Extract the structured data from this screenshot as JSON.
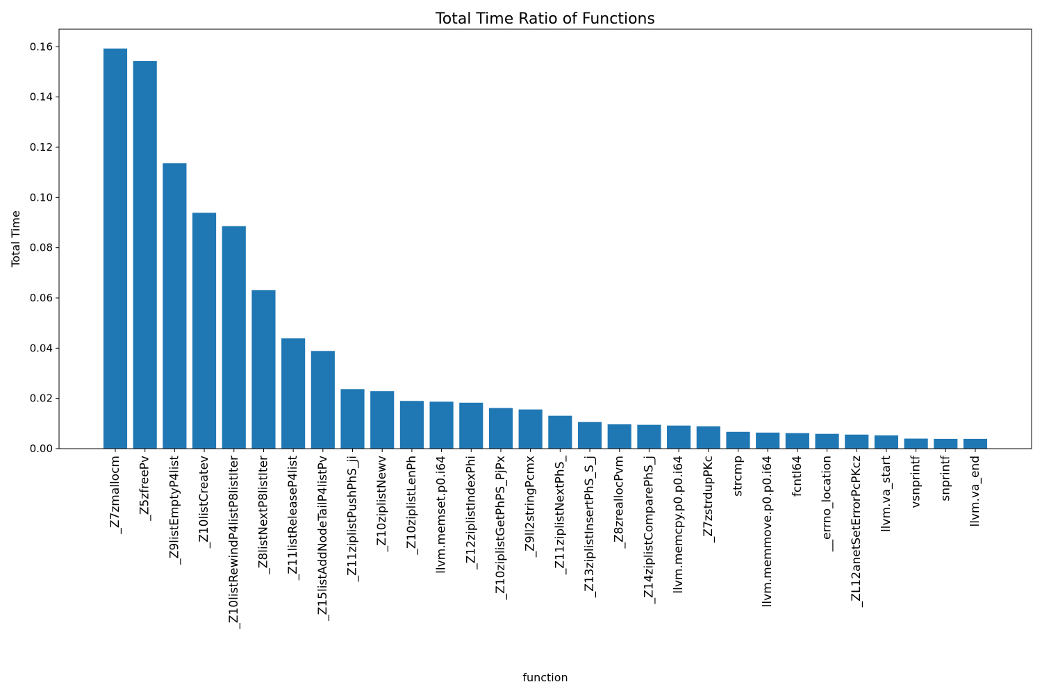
{
  "chart_data": {
    "type": "bar",
    "title": "Total Time Ratio of Functions",
    "xlabel": "function",
    "ylabel": "Total Time",
    "ylim": [
      0,
      0.167
    ],
    "yticks": [
      "0.00",
      "0.02",
      "0.04",
      "0.06",
      "0.08",
      "0.10",
      "0.12",
      "0.14",
      "0.16"
    ],
    "grid": false,
    "legend": "none",
    "bar_color": "#1f77b4",
    "categories": [
      "_Z7zmallocm",
      "_Z5zfreePv",
      "_Z9listEmptyP4list",
      "_Z10listCreatev",
      "_Z10listRewindP4listP8listIter",
      "_Z8listNextP8listIter",
      "_Z11listReleaseP4list",
      "_Z15listAddNodeTailP4listPv",
      "_Z11ziplistPushPhS_ji",
      "_Z10ziplistNewv",
      "_Z10ziplistLenPh",
      "llvm.memset.p0.i64",
      "_Z12ziplistIndexPhi",
      "_Z10ziplistGetPhPS_PjPx",
      "_Z9ll2stringPcmx",
      "_Z11ziplistNextPhS_",
      "_Z13ziplistInsertPhS_S_j",
      "_Z8zreallocPvm",
      "_Z14ziplistComparePhS_j",
      "llvm.memcpy.p0.p0.i64",
      "_Z7zstrdupPKc",
      "strcmp",
      "llvm.memmove.p0.p0.i64",
      "fcntl64",
      "__errno_location",
      "_ZL12anetSetErrorPcPKcz",
      "llvm.va_start",
      "vsnprintf",
      "snprintf",
      "llvm.va_end"
    ],
    "values": [
      0.1593,
      0.1543,
      0.1136,
      0.0939,
      0.0886,
      0.0631,
      0.0439,
      0.0389,
      0.0237,
      0.0229,
      0.019,
      0.0187,
      0.0183,
      0.0162,
      0.0156,
      0.0131,
      0.0106,
      0.0097,
      0.0095,
      0.0092,
      0.0089,
      0.0067,
      0.0064,
      0.0062,
      0.0059,
      0.0056,
      0.0053,
      0.004,
      0.0039,
      0.0039
    ]
  }
}
